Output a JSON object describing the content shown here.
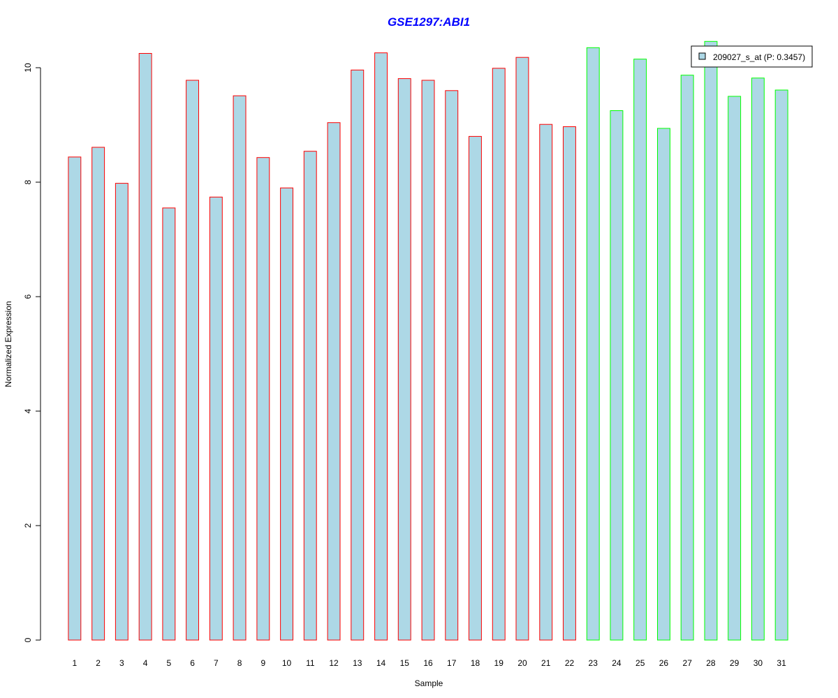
{
  "chart_data": {
    "type": "bar",
    "title": "GSE1297:ABI1",
    "xlabel": "Sample",
    "ylabel": "Normalized Expression",
    "ylim": [
      0,
      10.5
    ],
    "yticks": [
      0,
      2,
      4,
      6,
      8,
      10
    ],
    "categories": [
      "1",
      "2",
      "3",
      "4",
      "5",
      "6",
      "7",
      "8",
      "9",
      "10",
      "11",
      "12",
      "13",
      "14",
      "15",
      "16",
      "17",
      "18",
      "19",
      "20",
      "21",
      "22",
      "23",
      "24",
      "25",
      "26",
      "27",
      "28",
      "29",
      "30",
      "31"
    ],
    "series": [
      {
        "name": "209027_s_at (P: 0.3457)",
        "values": [
          8.44,
          8.61,
          7.98,
          10.25,
          7.55,
          9.78,
          7.74,
          9.51,
          8.43,
          7.9,
          8.54,
          9.04,
          9.96,
          10.26,
          9.81,
          9.78,
          9.6,
          8.8,
          9.99,
          10.18,
          9.01,
          8.97,
          10.35,
          9.25,
          10.15,
          8.94,
          9.87,
          10.46,
          9.5,
          9.82,
          9.61
        ]
      }
    ],
    "groups": [
      "a",
      "a",
      "a",
      "a",
      "a",
      "a",
      "a",
      "a",
      "a",
      "a",
      "a",
      "a",
      "a",
      "a",
      "a",
      "a",
      "a",
      "a",
      "a",
      "a",
      "a",
      "a",
      "b",
      "b",
      "b",
      "b",
      "b",
      "b",
      "b",
      "b",
      "b"
    ],
    "colors": {
      "fill": "#add8e6",
      "group_a": "#ff0000",
      "group_b": "#00ff00",
      "title": "#0000ff"
    },
    "grid": false,
    "legend_placement": "top-right"
  }
}
